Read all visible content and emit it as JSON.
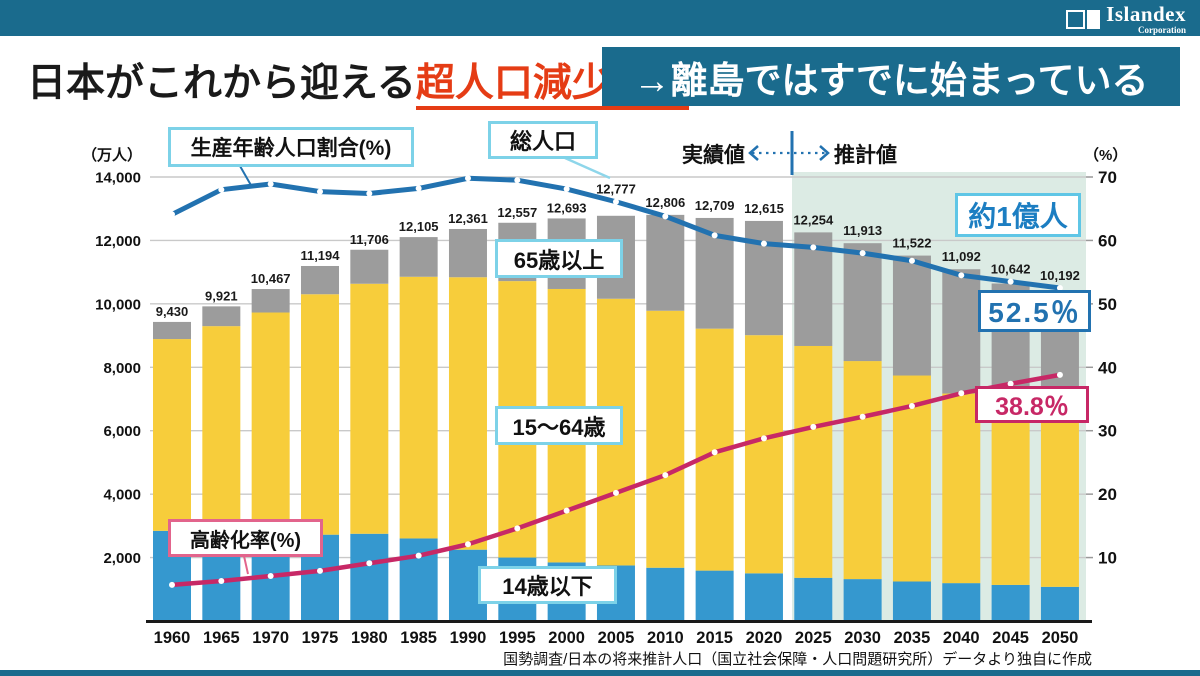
{
  "header": {
    "brand": "Islandex",
    "brand_sub": "Corporation"
  },
  "title": {
    "prefix": "日本がこれから迎える",
    "emphasis": "超人口減少時代",
    "callout": "→離島ではすでに始まっている"
  },
  "chart_data": {
    "type": "bar",
    "subtype": "stacked-bar-with-lines",
    "x": [
      "1960",
      "1965",
      "1970",
      "1975",
      "1980",
      "1985",
      "1990",
      "1995",
      "2000",
      "2005",
      "2010",
      "2015",
      "2020",
      "2025",
      "2030",
      "2035",
      "2040",
      "2045",
      "2050"
    ],
    "axis_left": {
      "unit": "（万人）",
      "range": [
        0,
        14000
      ],
      "ticks": [
        2000,
        4000,
        6000,
        8000,
        10000,
        12000,
        14000
      ]
    },
    "axis_right": {
      "unit": "（%）",
      "range": [
        0,
        70
      ],
      "ticks": [
        10,
        20,
        30,
        40,
        50,
        60,
        70
      ]
    },
    "grid": "horizontal",
    "bars": {
      "total_label_name": "総人口",
      "totals": [
        9430,
        9921,
        10467,
        11194,
        11706,
        12105,
        12361,
        12557,
        12693,
        12777,
        12806,
        12709,
        12615,
        12254,
        11913,
        11522,
        11092,
        10642,
        10192
      ],
      "stack": [
        {
          "name": "14歳以下",
          "color": "#3598cf",
          "values": [
            2843,
            2553,
            2515,
            2722,
            2751,
            2603,
            2249,
            2001,
            1847,
            1752,
            1680,
            1589,
            1503,
            1362,
            1321,
            1246,
            1194,
            1138,
            1077
          ]
        },
        {
          "name": "15〜64歳",
          "color": "#f7cd3b",
          "values": [
            6047,
            6744,
            7212,
            7581,
            7883,
            8251,
            8590,
            8716,
            8622,
            8409,
            8103,
            7629,
            7509,
            7310,
            6875,
            6494,
            5978,
            5584,
            5275
          ]
        },
        {
          "name": "65歳以上",
          "color": "#9c9c9c",
          "values": [
            540,
            624,
            740,
            891,
            1072,
            1251,
            1522,
            1840,
            2224,
            2616,
            3023,
            3491,
            3603,
            3582,
            3717,
            3782,
            3920,
            3920,
            3840
          ]
        }
      ]
    },
    "lines": [
      {
        "name": "生産年齢人口割合(%)",
        "axis": "right",
        "color": "#2272b0",
        "values": [
          64.1,
          68.0,
          68.9,
          67.7,
          67.4,
          68.2,
          69.8,
          69.5,
          68.1,
          66.1,
          63.8,
          60.8,
          59.5,
          58.9,
          58.0,
          56.8,
          54.5,
          53.5,
          52.5
        ]
      },
      {
        "name": "高齢化率(%)",
        "axis": "right",
        "color": "#c72866",
        "values": [
          5.7,
          6.3,
          7.1,
          7.9,
          9.1,
          10.3,
          12.1,
          14.6,
          17.4,
          20.2,
          23.0,
          26.6,
          28.8,
          30.6,
          32.2,
          33.9,
          35.9,
          37.4,
          38.8
        ]
      }
    ],
    "projection": {
      "actual_label": "実績値",
      "projection_label": "推計値",
      "starts_at_year": "2025",
      "band_color": "#dcebe4"
    },
    "annotations": [
      {
        "text": "約1億人",
        "color": "#1c7ec2"
      },
      {
        "text": "52.5％",
        "color": "#2272b0"
      },
      {
        "text": "38.8％",
        "color": "#c72866"
      }
    ]
  },
  "source": "国勢調査/日本の将来推計人口（国立社会保障・人口問題研究所）データより独自に作成"
}
